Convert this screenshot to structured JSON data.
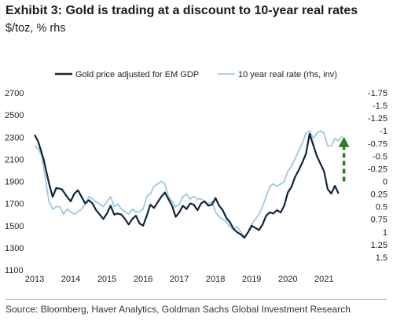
{
  "header": {
    "title": "Exhibit 3: Gold is trading at a discount to 10-year real rates",
    "subtitle": "$/toz, % rhs"
  },
  "source": "Source: Bloomberg, Haver Analytics, Goldman Sachs Global Investment Research",
  "colors": {
    "gold": "#10243e",
    "real_rate": "#9cc8e2",
    "arrow": "#2e7d1f"
  },
  "chart_data": {
    "type": "line",
    "x_ticks": [
      "2013",
      "2014",
      "2015",
      "2016",
      "2017",
      "2018",
      "2019",
      "2020",
      "2021"
    ],
    "y_left": {
      "ylim": [
        1100,
        2700
      ],
      "ticks": [
        "2700",
        "2500",
        "2300",
        "2100",
        "1900",
        "1700",
        "1500",
        "1300",
        "1100"
      ]
    },
    "y_right": {
      "inverted": true,
      "ylim": [
        -1.75,
        1.75
      ],
      "ticks": [
        "-1.75",
        "-1.5",
        "-1.25",
        "-1",
        "-0.75",
        "-0.5",
        "-0.25",
        "0",
        "0.25",
        "0.5",
        "0.75",
        "1",
        "1.25",
        "1.5"
      ]
    },
    "grid": false,
    "legend_position": "top",
    "series": [
      {
        "name": "Gold price adjusted for EM GDP",
        "axis": "left",
        "points": [
          [
            2013.0,
            2320
          ],
          [
            2013.1,
            2260
          ],
          [
            2013.25,
            2100
          ],
          [
            2013.4,
            1880
          ],
          [
            2013.5,
            1760
          ],
          [
            2013.6,
            1840
          ],
          [
            2013.75,
            1830
          ],
          [
            2013.9,
            1760
          ],
          [
            2014.0,
            1720
          ],
          [
            2014.1,
            1790
          ],
          [
            2014.2,
            1820
          ],
          [
            2014.3,
            1760
          ],
          [
            2014.4,
            1700
          ],
          [
            2014.5,
            1730
          ],
          [
            2014.6,
            1700
          ],
          [
            2014.7,
            1640
          ],
          [
            2014.8,
            1600
          ],
          [
            2014.9,
            1560
          ],
          [
            2015.0,
            1610
          ],
          [
            2015.1,
            1680
          ],
          [
            2015.2,
            1600
          ],
          [
            2015.3,
            1610
          ],
          [
            2015.4,
            1600
          ],
          [
            2015.5,
            1560
          ],
          [
            2015.6,
            1510
          ],
          [
            2015.7,
            1560
          ],
          [
            2015.8,
            1590
          ],
          [
            2015.9,
            1520
          ],
          [
            2016.0,
            1500
          ],
          [
            2016.1,
            1590
          ],
          [
            2016.2,
            1690
          ],
          [
            2016.3,
            1660
          ],
          [
            2016.4,
            1710
          ],
          [
            2016.5,
            1760
          ],
          [
            2016.6,
            1800
          ],
          [
            2016.7,
            1740
          ],
          [
            2016.8,
            1680
          ],
          [
            2016.9,
            1580
          ],
          [
            2017.0,
            1620
          ],
          [
            2017.1,
            1680
          ],
          [
            2017.2,
            1650
          ],
          [
            2017.3,
            1700
          ],
          [
            2017.4,
            1690
          ],
          [
            2017.5,
            1640
          ],
          [
            2017.6,
            1700
          ],
          [
            2017.7,
            1720
          ],
          [
            2017.8,
            1680
          ],
          [
            2017.9,
            1690
          ],
          [
            2018.0,
            1750
          ],
          [
            2018.1,
            1680
          ],
          [
            2018.2,
            1640
          ],
          [
            2018.3,
            1570
          ],
          [
            2018.4,
            1530
          ],
          [
            2018.5,
            1470
          ],
          [
            2018.6,
            1440
          ],
          [
            2018.7,
            1420
          ],
          [
            2018.8,
            1390
          ],
          [
            2018.9,
            1440
          ],
          [
            2019.0,
            1500
          ],
          [
            2019.1,
            1480
          ],
          [
            2019.2,
            1460
          ],
          [
            2019.3,
            1510
          ],
          [
            2019.4,
            1590
          ],
          [
            2019.5,
            1620
          ],
          [
            2019.6,
            1610
          ],
          [
            2019.7,
            1640
          ],
          [
            2019.8,
            1620
          ],
          [
            2019.9,
            1680
          ],
          [
            2020.0,
            1800
          ],
          [
            2020.1,
            1850
          ],
          [
            2020.2,
            1940
          ],
          [
            2020.3,
            2000
          ],
          [
            2020.4,
            2070
          ],
          [
            2020.5,
            2150
          ],
          [
            2020.6,
            2330
          ],
          [
            2020.7,
            2230
          ],
          [
            2020.8,
            2130
          ],
          [
            2020.9,
            2060
          ],
          [
            2021.0,
            1990
          ],
          [
            2021.1,
            1830
          ],
          [
            2021.2,
            1790
          ],
          [
            2021.3,
            1860
          ],
          [
            2021.4,
            1790
          ]
        ]
      },
      {
        "name": "10 year real rate (rhs, inv)",
        "axis": "right",
        "points": [
          [
            2013.0,
            -0.7
          ],
          [
            2013.1,
            -0.65
          ],
          [
            2013.2,
            -0.5
          ],
          [
            2013.3,
            -0.05
          ],
          [
            2013.4,
            0.4
          ],
          [
            2013.5,
            0.55
          ],
          [
            2013.6,
            0.5
          ],
          [
            2013.7,
            0.5
          ],
          [
            2013.8,
            0.65
          ],
          [
            2013.9,
            0.55
          ],
          [
            2014.0,
            0.6
          ],
          [
            2014.1,
            0.65
          ],
          [
            2014.2,
            0.6
          ],
          [
            2014.3,
            0.55
          ],
          [
            2014.4,
            0.45
          ],
          [
            2014.5,
            0.3
          ],
          [
            2014.6,
            0.35
          ],
          [
            2014.7,
            0.4
          ],
          [
            2014.8,
            0.45
          ],
          [
            2014.9,
            0.5
          ],
          [
            2015.0,
            0.4
          ],
          [
            2015.1,
            0.3
          ],
          [
            2015.2,
            0.5
          ],
          [
            2015.3,
            0.45
          ],
          [
            2015.4,
            0.55
          ],
          [
            2015.5,
            0.6
          ],
          [
            2015.6,
            0.65
          ],
          [
            2015.7,
            0.55
          ],
          [
            2015.8,
            0.6
          ],
          [
            2015.9,
            0.6
          ],
          [
            2016.0,
            0.55
          ],
          [
            2016.1,
            0.3
          ],
          [
            2016.2,
            0.25
          ],
          [
            2016.3,
            0.1
          ],
          [
            2016.4,
            0.05
          ],
          [
            2016.5,
            0.0
          ],
          [
            2016.6,
            0.05
          ],
          [
            2016.7,
            0.3
          ],
          [
            2016.8,
            0.4
          ],
          [
            2016.9,
            0.5
          ],
          [
            2017.0,
            0.45
          ],
          [
            2017.1,
            0.3
          ],
          [
            2017.2,
            0.25
          ],
          [
            2017.3,
            0.35
          ],
          [
            2017.4,
            0.3
          ],
          [
            2017.5,
            0.35
          ],
          [
            2017.6,
            0.35
          ],
          [
            2017.7,
            0.4
          ],
          [
            2017.8,
            0.45
          ],
          [
            2017.9,
            0.4
          ],
          [
            2018.0,
            0.6
          ],
          [
            2018.1,
            0.7
          ],
          [
            2018.2,
            0.75
          ],
          [
            2018.3,
            0.8
          ],
          [
            2018.4,
            0.9
          ],
          [
            2018.5,
            0.95
          ],
          [
            2018.6,
            0.9
          ],
          [
            2018.7,
            1.0
          ],
          [
            2018.8,
            1.1
          ],
          [
            2018.9,
            1.0
          ],
          [
            2019.0,
            0.85
          ],
          [
            2019.1,
            0.75
          ],
          [
            2019.2,
            0.65
          ],
          [
            2019.3,
            0.5
          ],
          [
            2019.4,
            0.3
          ],
          [
            2019.5,
            0.1
          ],
          [
            2019.6,
            0.05
          ],
          [
            2019.7,
            0.1
          ],
          [
            2019.8,
            0.05
          ],
          [
            2019.9,
            0.0
          ],
          [
            2020.0,
            -0.2
          ],
          [
            2020.1,
            -0.3
          ],
          [
            2020.2,
            -0.45
          ],
          [
            2020.3,
            -0.6
          ],
          [
            2020.4,
            -0.75
          ],
          [
            2020.5,
            -0.95
          ],
          [
            2020.6,
            -1.0
          ],
          [
            2020.7,
            -0.85
          ],
          [
            2020.8,
            -0.95
          ],
          [
            2020.9,
            -1.0
          ],
          [
            2021.0,
            -0.95
          ],
          [
            2021.1,
            -0.7
          ],
          [
            2021.2,
            -0.7
          ],
          [
            2021.3,
            -0.85
          ],
          [
            2021.4,
            -0.8
          ],
          [
            2021.5,
            -0.9
          ]
        ]
      }
    ],
    "arrow": {
      "x": 2021.55,
      "from_right_value": 0.0,
      "to_right_value": -0.85
    }
  }
}
